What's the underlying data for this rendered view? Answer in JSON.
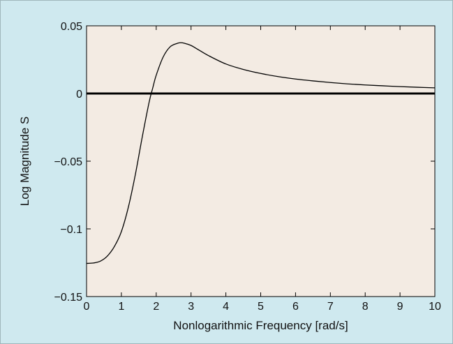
{
  "chart_data": {
    "type": "line",
    "title": "",
    "xlabel": "Nonlogarithmic Frequency [rad/s]",
    "ylabel": "Log Magnitude S",
    "xlim": [
      0,
      10
    ],
    "ylim": [
      -0.15,
      0.05
    ],
    "x_ticks": [
      0,
      1,
      2,
      3,
      4,
      5,
      6,
      7,
      8,
      9,
      10
    ],
    "x_tick_labels": [
      "0",
      "1",
      "2",
      "3",
      "4",
      "5",
      "6",
      "7",
      "8",
      "9",
      "10"
    ],
    "y_ticks": [
      -0.15,
      -0.1,
      -0.05,
      0,
      0.05
    ],
    "y_tick_labels": [
      "−0.15",
      "−0.1",
      "−0.05",
      "0",
      "0.05"
    ],
    "grid": false,
    "legend": "none",
    "series": [
      {
        "x": [
          0,
          0.2,
          0.4,
          0.6,
          0.8,
          1.0,
          1.2,
          1.4,
          1.6,
          1.8,
          1.9,
          2.0,
          2.2,
          2.4,
          2.6,
          2.7,
          2.8,
          3.0,
          3.2,
          3.5,
          4.0,
          4.5,
          5.0,
          5.5,
          6.0,
          6.5,
          7.0,
          7.5,
          8.0,
          8.5,
          9.0,
          9.5,
          10.0
        ],
        "y": [
          -0.1255,
          -0.1252,
          -0.1238,
          -0.12,
          -0.113,
          -0.102,
          -0.084,
          -0.06,
          -0.032,
          -0.006,
          0.004,
          0.0135,
          0.027,
          0.0345,
          0.037,
          0.0375,
          0.0372,
          0.0355,
          0.0325,
          0.028,
          0.0218,
          0.0178,
          0.0148,
          0.0125,
          0.0107,
          0.0093,
          0.0081,
          0.0071,
          0.0063,
          0.0057,
          0.0051,
          0.0046,
          0.0042
        ],
        "color": "#000000"
      },
      {
        "x": [
          0,
          10
        ],
        "y": [
          0,
          0
        ],
        "color": "#000000"
      }
    ]
  },
  "colors": {
    "figure_background": "#cfe9ef",
    "plot_background": "#f3ebe3",
    "line": "#000000"
  }
}
